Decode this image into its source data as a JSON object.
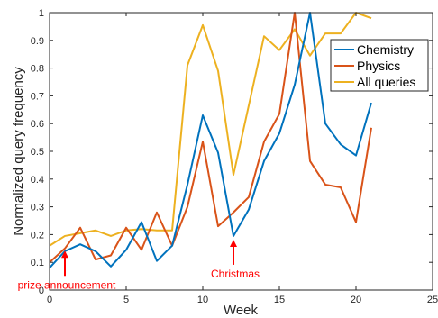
{
  "chart_data": {
    "type": "line",
    "xlabel": "Week",
    "ylabel": "Normalized query frequency",
    "xlim": [
      0,
      25
    ],
    "ylim": [
      0,
      1
    ],
    "x_ticks": [
      0,
      5,
      10,
      15,
      20,
      25
    ],
    "y_ticks": [
      0,
      0.1,
      0.2,
      0.3,
      0.4,
      0.5,
      0.6,
      0.7,
      0.8,
      0.9,
      1
    ],
    "x_tick_labels": [
      "0",
      "5",
      "10",
      "15",
      "20",
      "25"
    ],
    "y_tick_labels": [
      "0",
      "0.1",
      "0.2",
      "0.3",
      "0.4",
      "0.5",
      "0.6",
      "0.7",
      "0.8",
      "0.9",
      "1"
    ],
    "grid": false,
    "legend_position": "top-right",
    "x": [
      0,
      1,
      2,
      3,
      4,
      5,
      6,
      7,
      8,
      9,
      10,
      11,
      12,
      13,
      14,
      15,
      16,
      17,
      18,
      19,
      20,
      21
    ],
    "series": [
      {
        "name": "Chemistry",
        "color": "#0072BD",
        "values": [
          0.08,
          0.14,
          0.165,
          0.14,
          0.085,
          0.145,
          0.245,
          0.105,
          0.16,
          0.38,
          0.63,
          0.495,
          0.195,
          0.29,
          0.465,
          0.565,
          0.74,
          1.0,
          0.6,
          0.525,
          0.485,
          0.675
        ]
      },
      {
        "name": "Physics",
        "color": "#D95319",
        "values": [
          0.1,
          0.15,
          0.225,
          0.11,
          0.125,
          0.225,
          0.145,
          0.28,
          0.16,
          0.3,
          0.535,
          0.23,
          0.28,
          0.335,
          0.535,
          0.635,
          1.0,
          0.465,
          0.38,
          0.37,
          0.245,
          0.585
        ]
      },
      {
        "name": "All queries",
        "color": "#EDB120",
        "values": [
          0.16,
          0.195,
          0.205,
          0.215,
          0.195,
          0.215,
          0.22,
          0.215,
          0.215,
          0.81,
          0.955,
          0.79,
          0.415,
          0.665,
          0.915,
          0.865,
          0.94,
          0.845,
          0.925,
          0.925,
          1.0,
          0.98
        ]
      }
    ],
    "annotations": [
      {
        "text": "prize announcement",
        "x": 1,
        "y": 0.155,
        "color": "#FF0000"
      },
      {
        "text": "Christmas",
        "x": 12,
        "y": 0.195,
        "color": "#FF0000"
      }
    ]
  }
}
